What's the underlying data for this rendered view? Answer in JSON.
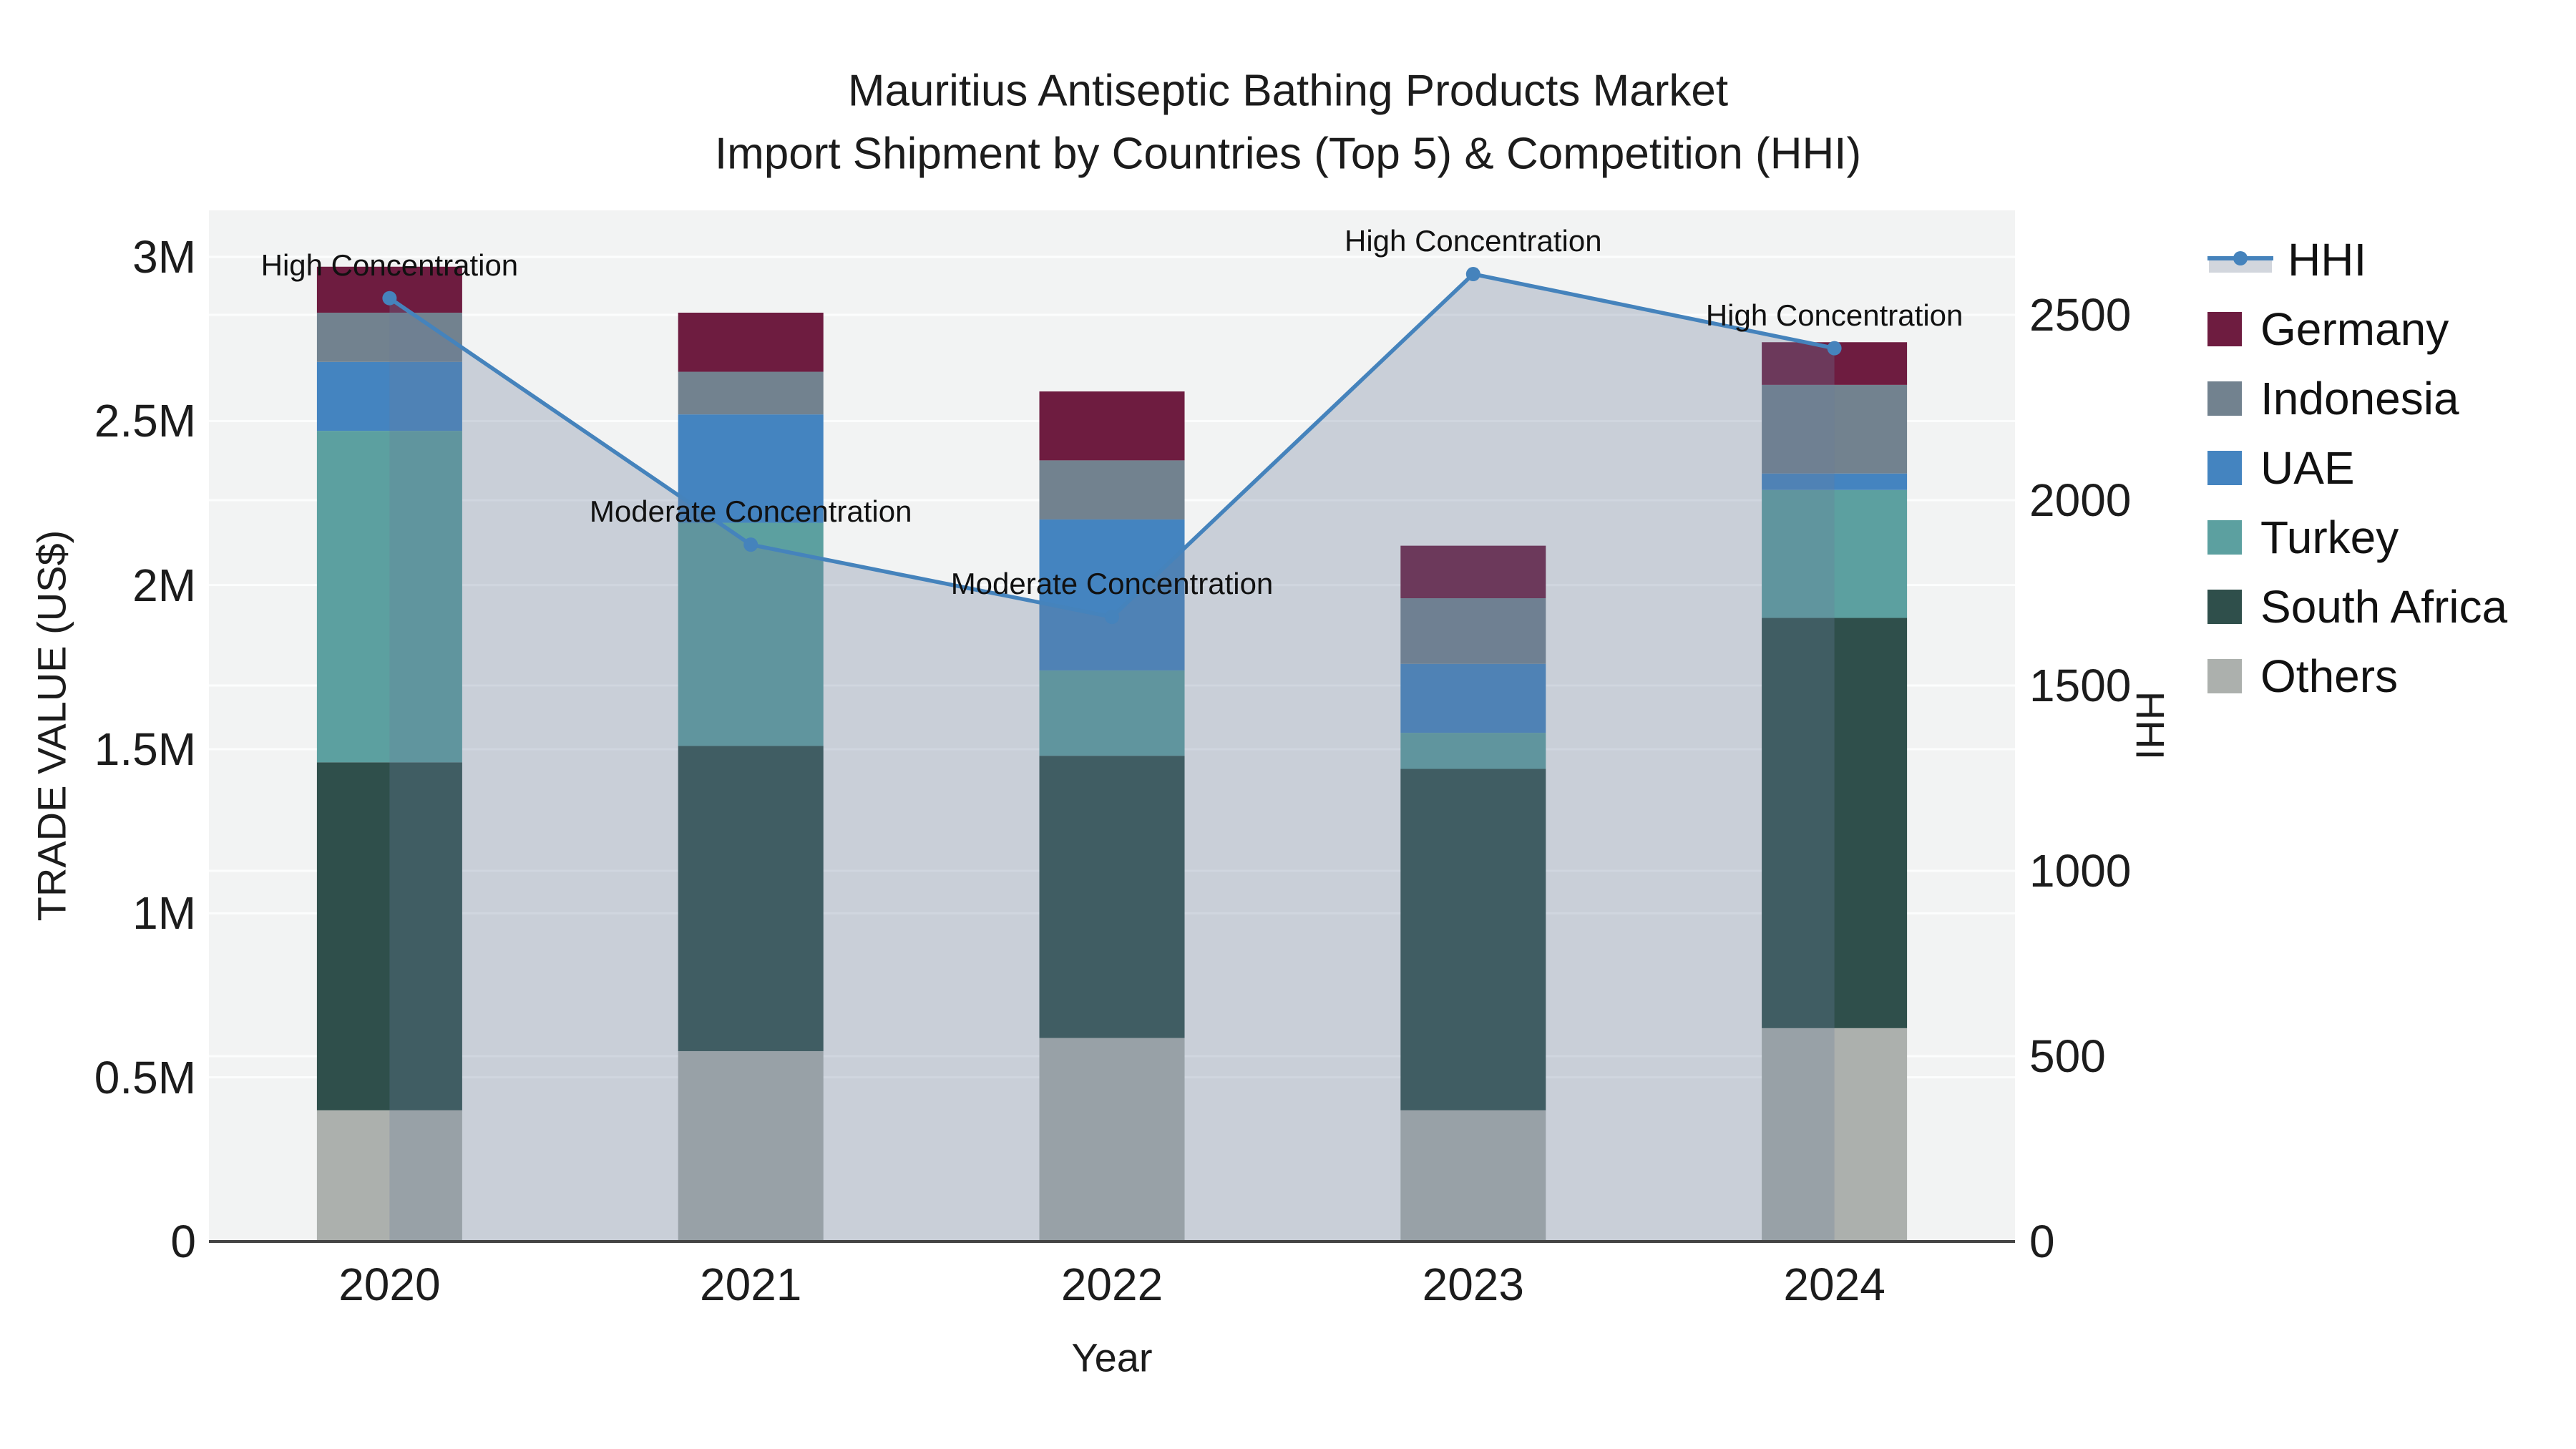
{
  "title": {
    "line1": "Mauritius Antiseptic Bathing Products Market",
    "line2": "Import Shipment by Countries (Top 5) & Competition (HHI)"
  },
  "axis_titles": {
    "x": "Year",
    "y_left": "TRADE VALUE (US$)",
    "y_right": "HHI"
  },
  "legend": {
    "items": [
      "HHI",
      "Germany",
      "Indonesia",
      "UAE",
      "Turkey",
      "South Africa",
      "Others"
    ]
  },
  "chart_data": {
    "type": "stacked-bar+line",
    "categories": [
      "2020",
      "2021",
      "2022",
      "2023",
      "2024"
    ],
    "bar_value_unit": "US$ trade value",
    "series": [
      {
        "name": "Others",
        "color": "#ACB0AD",
        "values": [
          400000,
          580000,
          620000,
          400000,
          650000
        ]
      },
      {
        "name": "South Africa",
        "color": "#2F4F4B",
        "values": [
          1060000,
          930000,
          860000,
          1040000,
          1250000
        ]
      },
      {
        "name": "Turkey",
        "color": "#5CA0A0",
        "values": [
          1010000,
          680000,
          260000,
          110000,
          390000
        ]
      },
      {
        "name": "UAE",
        "color": "#4484C0",
        "values": [
          210000,
          330000,
          460000,
          210000,
          50000
        ]
      },
      {
        "name": "Indonesia",
        "color": "#72828F",
        "values": [
          150000,
          130000,
          180000,
          200000,
          270000
        ]
      },
      {
        "name": "Germany",
        "color": "#6E1C40",
        "values": [
          140000,
          180000,
          210000,
          160000,
          130000
        ]
      }
    ],
    "stack_order_note": "series listed bottom-to-top of stack",
    "line_series": {
      "name": "HHI",
      "axis": "right",
      "color": "#4583BC",
      "fill_color": "rgba(106,126,154,0.30)",
      "fill_swatch": "#D2D6DD",
      "values": [
        2545,
        1880,
        1685,
        2610,
        2410
      ]
    },
    "annotations": [
      {
        "category": "2020",
        "text": "High Concentration"
      },
      {
        "category": "2021",
        "text": "Moderate Concentration"
      },
      {
        "category": "2022",
        "text": "Moderate Concentration"
      },
      {
        "category": "2023",
        "text": "High Concentration"
      },
      {
        "category": "2024",
        "text": "High Concentration"
      }
    ],
    "y_left_axis": {
      "ticks": [
        {
          "label": "0",
          "value": 0
        },
        {
          "label": "0.5M",
          "value": 500000
        },
        {
          "label": "1M",
          "value": 1000000
        },
        {
          "label": "1.5M",
          "value": 1500000
        },
        {
          "label": "2M",
          "value": 2000000
        },
        {
          "label": "2.5M",
          "value": 2500000
        },
        {
          "label": "3M",
          "value": 3000000
        }
      ],
      "max_value": 3142000
    },
    "y_right_axis": {
      "ticks": [
        {
          "label": "0",
          "value": 0
        },
        {
          "label": "500",
          "value": 500
        },
        {
          "label": "1000",
          "value": 1000
        },
        {
          "label": "1500",
          "value": 1500
        },
        {
          "label": "2000",
          "value": 2000
        },
        {
          "label": "2500",
          "value": 2500
        }
      ],
      "max_value": 2782
    },
    "plot_bg": "#F2F3F3",
    "grid_color": "rgba(255,255,255,0.78)",
    "axis_line_color": "#444444",
    "legend_position": "right"
  }
}
